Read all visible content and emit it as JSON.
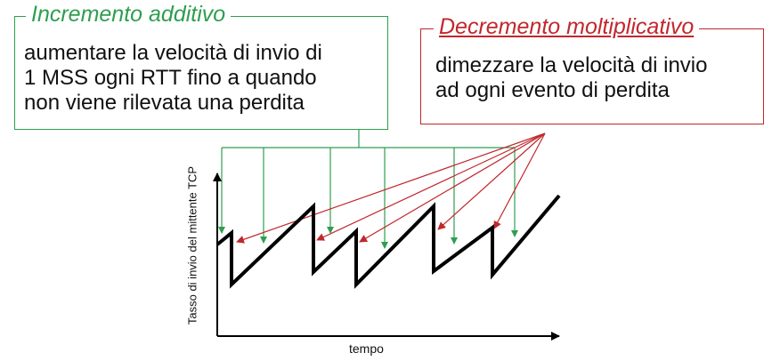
{
  "additive": {
    "title": "Incremento additivo",
    "lines": [
      "aumentare la velocità di invio di",
      "1 MSS ogni RTT fino a quando",
      "non viene rilevata una perdita"
    ]
  },
  "multiplicative": {
    "title": "Decremento moltiplicativo",
    "lines": [
      "dimezzare la velocità di invio",
      "ad ogni evento di perdita"
    ]
  },
  "axes": {
    "ylabel": "Tasso di invio del mittente TCP",
    "xlabel": "tempo"
  },
  "colors": {
    "additive": "#2e9e4f",
    "multiplicative": "#c0282d",
    "sawtooth": "#000000"
  }
}
